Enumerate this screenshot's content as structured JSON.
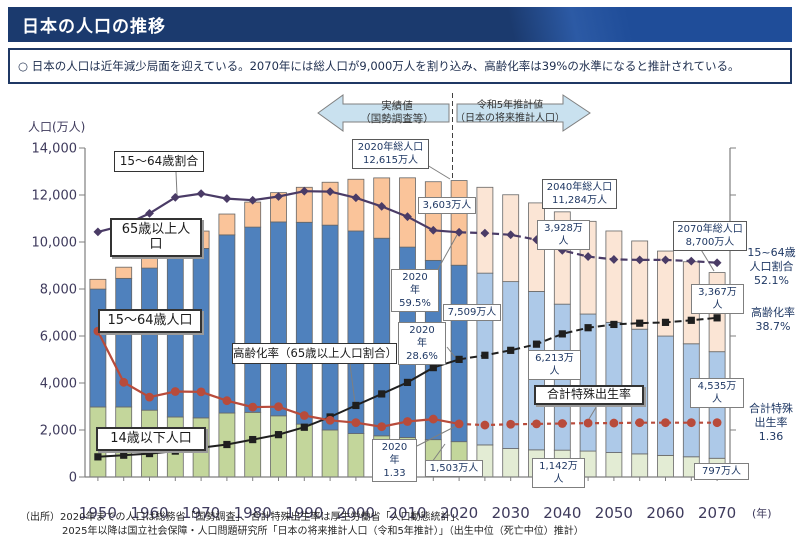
{
  "title": "日本の人口の推移",
  "summary": "○ 日本の人口は近年減少局面を迎えている。2070年には総人口が9,000万人を割り込み、高齢化率は39%の水準になると推計されている。",
  "arrows": {
    "actual": {
      "line1": "実績値",
      "line2": "（国勢調査等）"
    },
    "projection": {
      "line1": "令和5年推計値",
      "line2": "（日本の将来推計人口）"
    }
  },
  "series_labels": {
    "ratio_box": "15～64歳割合",
    "elder_box": "65歳以上人口",
    "working_box": "15～64歳人口",
    "child_box": "14歳以下人口",
    "aging_box": "高齢化率（65歳以上人口割合）",
    "tfr_box": "合計特殊出生率"
  },
  "annotations": {
    "total2020": {
      "l1": "2020年総人口",
      "l2": "12,615万人"
    },
    "e2020": "3,603万人",
    "w2020": "7,509万人",
    "c2020": "1,503万人",
    "r2020": {
      "l1": "2020",
      "l2": "年",
      "l3": "59.5%"
    },
    "a2020": {
      "l1": "2020",
      "l2": "年",
      "l3": "28.6%"
    },
    "f2020": {
      "l1": "2020",
      "l2": "年",
      "l3": "1.33"
    },
    "total2040": {
      "l1": "2040年総人口",
      "l2": "11,284万人"
    },
    "e2040": {
      "l1": "3,928万",
      "l2": "人"
    },
    "w2040": {
      "l1": "6,213万",
      "l2": "人"
    },
    "c2040": {
      "l1": "1,142万",
      "l2": "人"
    },
    "total2070": {
      "l1": "2070年総人口",
      "l2": "8,700万人"
    },
    "e2070": {
      "l1": "3,367万",
      "l2": "人"
    },
    "w2070": {
      "l1": "4,535万",
      "l2": "人"
    },
    "c2070": "797万人"
  },
  "right_labels": {
    "ratio": {
      "l1": "15~64歳",
      "l2": "人口割合",
      "l3": "52.1%"
    },
    "aging": {
      "l1": "高齢化率",
      "l2": "38.7%"
    },
    "tfr": {
      "l1": "合計特殊",
      "l2": "出生率",
      "l3": "1.36"
    }
  },
  "source": {
    "line1": "（出所）2020年までの人口は総務省「国勢調査」、合計特殊出生率は厚生労働省「人口動態統計」、",
    "line2": "2025年以降は国立社会保障・人口問題研究所「日本の将来推計人口（令和5年推計）」（出生中位（死亡中位）推計）"
  },
  "colors": {
    "banner_navy": "#1b3a6e",
    "banner_blue": "#1f4d99",
    "summary_border": "#1f3864",
    "bar_child": "#c3d69b",
    "bar_child_proj": "#e3ecd4",
    "bar_working": "#4f81bd",
    "bar_working_proj": "#adc9e8",
    "bar_elder": "#fac49a",
    "bar_elder_proj": "#fbe5d5",
    "line_ratio": "#4a3b66",
    "line_aging": "#1f1f1f",
    "line_tfr": "#b84b3b",
    "arrow_fill": "#c9e1ef",
    "axis": "#7f7f7f",
    "tick_text": "#3e3a5c"
  },
  "chart_data": {
    "type": "bar",
    "subtype": "stacked-bar-with-overlay-lines",
    "x": [
      1950,
      1955,
      1960,
      1965,
      1970,
      1975,
      1980,
      1985,
      1990,
      1995,
      2000,
      2005,
      2010,
      2015,
      2020,
      2025,
      2030,
      2035,
      2040,
      2045,
      2050,
      2055,
      2060,
      2065,
      2070
    ],
    "actual_through": 2020,
    "ylabel": "人口(万人)",
    "x_unit": "(年)",
    "ylim": [
      0,
      14000
    ],
    "yticks": [
      0,
      2000,
      4000,
      6000,
      8000,
      10000,
      12000,
      14000
    ],
    "xtick_decades": [
      1950,
      1960,
      1970,
      1980,
      1990,
      2000,
      2010,
      2020,
      2030,
      2040,
      2050,
      2060,
      2070
    ],
    "grid": false,
    "series": [
      {
        "name": "14歳以下人口",
        "type": "bar",
        "unit": "万人",
        "values": [
          2979,
          2980,
          2843,
          2553,
          2515,
          2722,
          2751,
          2603,
          2249,
          2001,
          1847,
          1752,
          1680,
          1589,
          1503,
          1365,
          1211,
          1155,
          1142,
          1103,
          1041,
          984,
          920,
          860,
          797
        ]
      },
      {
        "name": "15～64歳人口",
        "type": "bar",
        "unit": "万人",
        "values": [
          5017,
          5473,
          6047,
          6744,
          7212,
          7581,
          7883,
          8251,
          8590,
          8716,
          8622,
          8409,
          8103,
          7629,
          7509,
          7310,
          7103,
          6740,
          6213,
          5832,
          5540,
          5306,
          5078,
          4809,
          4535
        ]
      },
      {
        "name": "65歳以上人口",
        "type": "bar",
        "unit": "万人",
        "values": [
          416,
          475,
          540,
          624,
          739,
          887,
          1065,
          1247,
          1489,
          1826,
          2201,
          2567,
          2948,
          3347,
          3603,
          3653,
          3696,
          3769,
          3928,
          3945,
          3888,
          3754,
          3617,
          3490,
          3367
        ]
      },
      {
        "name": "15～64歳割合",
        "type": "line",
        "unit": "%",
        "marker": "diamond",
        "values": [
          59.6,
          61.2,
          64.1,
          68.0,
          68.9,
          67.7,
          67.3,
          68.2,
          69.5,
          69.4,
          67.9,
          65.8,
          63.3,
          60.0,
          59.5,
          59.3,
          58.9,
          57.7,
          55.1,
          53.6,
          52.9,
          52.8,
          52.8,
          52.5,
          52.1
        ]
      },
      {
        "name": "高齢化率（65歳以上人口割合）",
        "type": "line",
        "unit": "%",
        "marker": "square",
        "values": [
          4.9,
          5.3,
          5.7,
          6.3,
          7.1,
          7.9,
          9.1,
          10.3,
          12.1,
          14.6,
          17.4,
          20.2,
          23.0,
          26.6,
          28.6,
          29.6,
          30.8,
          32.3,
          34.8,
          36.3,
          37.1,
          37.4,
          37.6,
          38.1,
          38.7
        ]
      },
      {
        "name": "合計特殊出生率",
        "type": "line",
        "unit": "",
        "marker": "circle",
        "values": [
          3.65,
          2.37,
          2.0,
          2.14,
          2.13,
          1.91,
          1.75,
          1.76,
          1.54,
          1.42,
          1.36,
          1.26,
          1.39,
          1.45,
          1.33,
          1.3,
          1.32,
          1.33,
          1.34,
          1.35,
          1.35,
          1.36,
          1.36,
          1.36,
          1.36
        ]
      }
    ],
    "key_points": {
      "total_2020": 12615,
      "total_2040": 11284,
      "total_2070": 8700,
      "ratio_1564_2070_pct": 52.1,
      "aging_rate_2070_pct": 38.7,
      "tfr_2070": 1.36
    }
  }
}
